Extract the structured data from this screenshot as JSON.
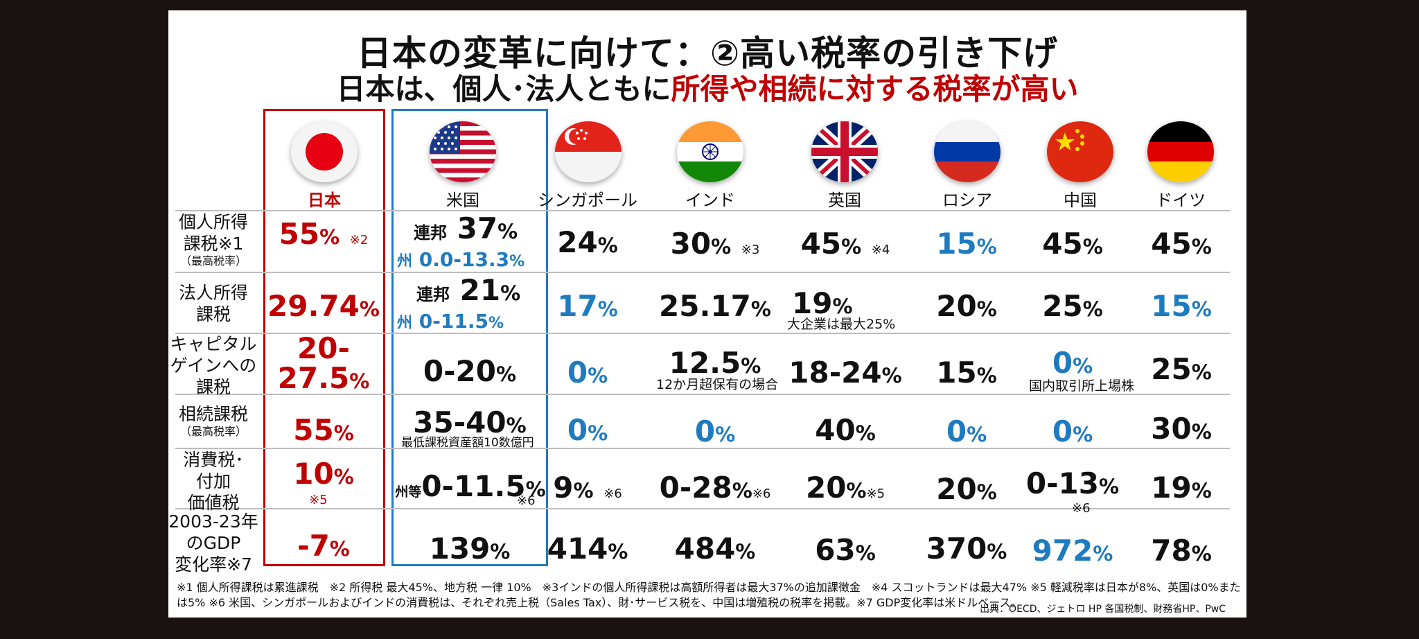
{
  "title": "日本の変革に向けて：②高い税率の引き下げ",
  "subtitle_prefix": "日本は、個人･法人ともに",
  "subtitle_highlight": "所得や相続に対する税率が高い",
  "countries": [
    "日本",
    "米国",
    "シンガポール",
    "インド",
    "英国",
    "ロシア",
    "中国",
    "ドイツ"
  ],
  "rows": [
    {
      "label_lines": [
        "個人所得",
        "課税※1"
      ],
      "label_small": "（最高税率）"
    },
    {
      "label_lines": [
        "法人所得",
        "課税"
      ],
      "label_small": ""
    },
    {
      "label_lines": [
        "キャピタル",
        "ゲインへの",
        "課税"
      ],
      "label_small": ""
    },
    {
      "label_lines": [
        "相続課税"
      ],
      "label_small": "（最高税率）"
    },
    {
      "label_lines": [
        "消費税･",
        "付加",
        "価値税"
      ],
      "label_small": ""
    },
    {
      "label_lines": [
        "2003-23年",
        "のGDP",
        "変化率※7"
      ],
      "label_small": ""
    }
  ],
  "cells": {
    "r1": {
      "jp": {
        "num": "55",
        "unit": "%",
        "mark": "※2"
      },
      "us_fed_prefix": "連邦",
      "us_fed_num": "37",
      "us_fed_unit": "%",
      "us_state_prefix": "州",
      "us_state_num": "0.0-13.3",
      "us_state_unit": "%",
      "sg": {
        "num": "24",
        "unit": "%"
      },
      "in": {
        "num": "30",
        "unit": "%",
        "mark": "※3"
      },
      "uk": {
        "num": "45",
        "unit": "%",
        "mark": "※4"
      },
      "ru": {
        "num": "15",
        "unit": "%"
      },
      "cn": {
        "num": "45",
        "unit": "%"
      },
      "de": {
        "num": "45",
        "unit": "%"
      }
    },
    "r2": {
      "jp": {
        "num": "29.74",
        "unit": "%"
      },
      "us_fed_prefix": "連邦",
      "us_fed_num": "21",
      "us_fed_unit": "%",
      "us_state_prefix": "州",
      "us_state_num": "0-11.5",
      "us_state_unit": "%",
      "sg": {
        "num": "17",
        "unit": "%"
      },
      "in": {
        "num": "25.17",
        "unit": "%"
      },
      "uk": {
        "num": "19",
        "unit": "%",
        "note": "大企業は最大25%"
      },
      "ru": {
        "num": "20",
        "unit": "%"
      },
      "cn": {
        "num": "25",
        "unit": "%"
      },
      "de": {
        "num": "15",
        "unit": "%"
      }
    },
    "r3": {
      "jp": {
        "line1": "20-",
        "line2": "27.5",
        "unit": "%"
      },
      "us": {
        "num": "0-20",
        "unit": "%"
      },
      "sg": {
        "num": "0",
        "unit": "%"
      },
      "in": {
        "num": "12.5",
        "unit": "%",
        "note": "12か月超保有の場合"
      },
      "uk": {
        "num": "18-24",
        "unit": "%"
      },
      "ru": {
        "num": "15",
        "unit": "%"
      },
      "cn": {
        "num": "0",
        "unit": "%",
        "note": "国内取引所上場株"
      },
      "de": {
        "num": "25",
        "unit": "%"
      }
    },
    "r4": {
      "jp": {
        "num": "55",
        "unit": "%"
      },
      "us": {
        "num": "35-40",
        "unit": "%",
        "note": "最低課税資産額10数億円"
      },
      "sg": {
        "num": "0",
        "unit": "%"
      },
      "in": {
        "num": "0",
        "unit": "%"
      },
      "uk": {
        "num": "40",
        "unit": "%"
      },
      "ru": {
        "num": "0",
        "unit": "%"
      },
      "cn": {
        "num": "0",
        "unit": "%"
      },
      "de": {
        "num": "30",
        "unit": "%"
      }
    },
    "r5": {
      "jp": {
        "num": "10",
        "unit": "%",
        "mark": "※5"
      },
      "us": {
        "prefix": "州等",
        "num": "0-11.5",
        "unit": "%",
        "mark": "※6"
      },
      "sg": {
        "num": "9",
        "unit": "%",
        "mark": "※6"
      },
      "in": {
        "num": "0-28",
        "unit": "%",
        "mark": "※6"
      },
      "uk": {
        "num": "20",
        "unit": "%",
        "mark": "※5"
      },
      "ru": {
        "num": "20",
        "unit": "%"
      },
      "cn": {
        "num": "0-13",
        "unit": "%",
        "mark": "※6"
      },
      "de": {
        "num": "19",
        "unit": "%"
      }
    },
    "r6": {
      "jp": {
        "num": "-7",
        "unit": "%"
      },
      "us": {
        "num": "139",
        "unit": "%"
      },
      "sg": {
        "num": "414",
        "unit": "%"
      },
      "in": {
        "num": "484",
        "unit": "%"
      },
      "uk": {
        "num": "63",
        "unit": "%"
      },
      "ru": {
        "num": "370",
        "unit": "%"
      },
      "cn": {
        "num": "972",
        "unit": "%"
      },
      "de": {
        "num": "78",
        "unit": "%"
      }
    }
  },
  "footnote": "※1 個人所得課税は累進課税　※2 所得税 最大45%、地方税 一律 10%　※3インドの個人所得課税は高額所得者は最大37%の追加課徴金　※4 スコットランドは最大47% ※5 軽減税率は日本が8%、英国は0%または5% ※6 米国、シンガポールおよびインドの消費税は、それぞれ売上税（Sales Tax）、財･サービス税を、中国は増殖税の税率を掲載。※7 GDP変化率は米ドルベース。",
  "source": "出典：OECD、ジェトロ HP 各国税制、財務省HP、PwC",
  "colors": {
    "red": "#c00000",
    "blue": "#1f7bbf"
  }
}
